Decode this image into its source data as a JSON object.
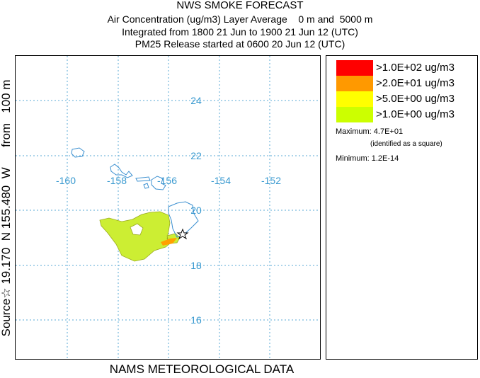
{
  "header": {
    "title": "NWS SMOKE FORECAST",
    "line1": "Air Concentration (ug/m3) Layer Average    0 m and  5000 m",
    "line2": "Integrated from 1800 21 Jun to 1900 21 Jun 12 (UTC)",
    "line3": "PM25 Release started at 0600 20 Jun 12 (UTC)"
  },
  "map": {
    "longitude_labels": [
      "-160",
      "-158",
      "-156",
      "-154",
      "-152"
    ],
    "latitude_labels": [
      "24",
      "22",
      "20",
      "18",
      "16"
    ],
    "grid_color": "#5aa9d6",
    "coast_color": "#3a8fd0",
    "plume_color": "#ccee33",
    "plume_high_color": "#ffa000",
    "source_marker": "star-icon"
  },
  "legend": {
    "items": [
      {
        "label": ">1.0E+02 ug/m3",
        "color": "#ff0000"
      },
      {
        "label": ">2.0E+01 ug/m3",
        "color": "#ff9900"
      },
      {
        "label": ">5.0E+00 ug/m3",
        "color": "#ffff00"
      },
      {
        "label": ">1.0E+00 ug/m3",
        "color": "#ccff00"
      }
    ],
    "maximum": "Maximum: 4.7E+01",
    "maximum_note": "(identified as a square)",
    "minimum": "Minimum: 1.2E-14"
  },
  "side_label": "Source☆ 19.170  N 155.480  W      from   100 m",
  "bottom_label": "NAMS METEOROLOGICAL DATA"
}
